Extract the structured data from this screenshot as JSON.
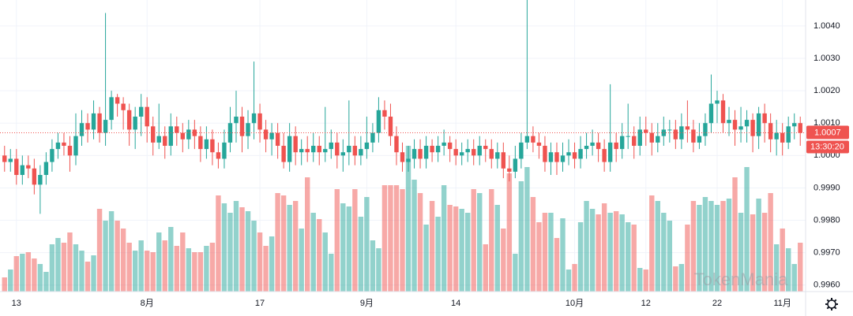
{
  "chart_data": {
    "type": "candlestick",
    "up_color": "#26a69a",
    "down_color": "#ef5350",
    "grid": true,
    "ylim": [
      0.9958,
      1.0048
    ],
    "yticks": [
      {
        "value": 0.996,
        "label": "0.9960"
      },
      {
        "value": 0.997,
        "label": "0.9970"
      },
      {
        "value": 0.998,
        "label": "0.9980"
      },
      {
        "value": 0.999,
        "label": "0.9990"
      },
      {
        "value": 1.0,
        "label": "1.0000"
      },
      {
        "value": 1.001,
        "label": "1.0010"
      },
      {
        "value": 1.002,
        "label": "1.0020"
      },
      {
        "value": 1.003,
        "label": "1.0030"
      },
      {
        "value": 1.004,
        "label": "1.0040"
      }
    ],
    "xticks": [
      {
        "value": 2,
        "label": "13"
      },
      {
        "value": 24,
        "label": "8月"
      },
      {
        "value": 43,
        "label": "17"
      },
      {
        "value": 61,
        "label": "9月"
      },
      {
        "value": 76,
        "label": "14"
      },
      {
        "value": 96,
        "label": "10月"
      },
      {
        "value": 108,
        "label": "12"
      },
      {
        "value": 120,
        "label": "22"
      },
      {
        "value": 131,
        "label": "11月"
      }
    ],
    "last_price": 1.0007,
    "time_label": "13:30:20",
    "watermark": "TokenMania",
    "open": [
      1.0,
      0.9998,
      0.9999,
      0.9994,
      0.9997,
      0.9996,
      0.9991,
      0.9994,
      0.9998,
      1.0002,
      1.0004,
      1.0003,
      1.0,
      1.0006,
      1.001,
      1.0008,
      1.0013,
      1.0007,
      1.0011,
      1.0018,
      1.0016,
      1.0014,
      1.0008,
      1.0012,
      1.0015,
      1.0009,
      1.0004,
      1.0006,
      1.0003,
      1.0009,
      1.0007,
      1.0005,
      1.0008,
      1.0006,
      1.0002,
      1.0005,
      1.0001,
      0.9999,
      1.0004,
      1.001,
      1.0012,
      1.0006,
      1.001,
      1.0013,
      1.0008,
      1.0005,
      1.0007,
      1.0003,
      0.9998,
      1.0006,
      1.0001,
      1.0002,
      1.0001,
      1.0003,
      1.0001,
      1.0002,
      1.0004,
      1.0,
      1.0001,
      1.0003,
      1.0,
      1.0002,
      1.0004,
      1.0007,
      1.0014,
      1.0012,
      1.0006,
      1.0001,
      0.9998,
      0.9999,
      1.0002,
      0.9999,
      1.0003,
      1.0001,
      1.0003,
      1.0004,
      1.0002,
      1.0,
      1.0001,
      1.0002,
      1.0,
      1.0003,
      1.0002,
      0.9999,
      1.0001,
      0.9996,
      0.9995,
      0.9999,
      1.0004,
      1.0006,
      1.0004,
      1.0003,
      0.9998,
      1.0001,
      0.9998,
      1.0,
      1.0001,
      0.9999,
      1.0002,
      1.0003,
      1.0004,
      1.0002,
      0.9998,
      1.0004,
      1.0002,
      1.0006,
      1.0006,
      1.0003,
      1.0008,
      1.0007,
      1.0004,
      1.0006,
      1.0008,
      1.0008,
      1.0005,
      1.0009,
      1.0008,
      1.0004,
      1.0006,
      1.001,
      1.0016,
      1.0017,
      1.001,
      1.0011,
      1.0008,
      1.0009,
      1.0011,
      1.0006,
      1.0013,
      1.001,
      1.0005,
      1.0007,
      1.0004,
      1.0009,
      1.001
    ],
    "high": [
      1.0003,
      1.0002,
      1.0002,
      1.0,
      1.0,
      0.9999,
      0.9997,
      1.0001,
      1.0005,
      1.0007,
      1.0007,
      1.0006,
      1.0013,
      1.0014,
      1.0013,
      1.0017,
      1.0015,
      1.0044,
      1.002,
      1.0019,
      1.0018,
      1.0016,
      1.0015,
      1.0019,
      1.0018,
      1.0012,
      1.0016,
      1.0009,
      1.0013,
      1.0012,
      1.001,
      1.0011,
      1.0011,
      1.0009,
      1.0009,
      1.0008,
      1.0004,
      1.0008,
      1.0015,
      1.002,
      1.0015,
      1.0014,
      1.0029,
      1.0016,
      1.0011,
      1.001,
      1.001,
      1.0007,
      1.001,
      1.0009,
      1.0005,
      1.0006,
      1.0007,
      1.0006,
      1.0015,
      1.0008,
      1.0007,
      1.0005,
      1.0017,
      1.0006,
      1.0006,
      1.0012,
      1.001,
      1.0018,
      1.0017,
      1.0016,
      1.0009,
      1.0004,
      1.0003,
      1.0005,
      1.0005,
      1.0006,
      1.0005,
      1.0006,
      1.0008,
      1.0006,
      1.0005,
      1.0004,
      1.0005,
      1.0005,
      1.0006,
      1.0005,
      1.0005,
      1.0004,
      1.0004,
      1.0,
      1.0003,
      1.0007,
      1.0048,
      1.0009,
      1.0007,
      1.0006,
      1.0004,
      1.0004,
      1.0004,
      1.0005,
      1.0004,
      1.0006,
      1.0007,
      1.0008,
      1.0007,
      1.0005,
      1.0022,
      1.0007,
      1.001,
      1.0016,
      1.0009,
      1.0012,
      1.0012,
      1.001,
      1.001,
      1.0012,
      1.0011,
      1.0011,
      1.0013,
      1.0017,
      1.0011,
      1.001,
      1.0013,
      1.0025,
      1.002,
      1.0019,
      1.0015,
      1.0014,
      1.0015,
      1.0014,
      1.0013,
      1.0015,
      1.0016,
      1.0013,
      1.0011,
      1.001,
      1.0012,
      1.0013,
      1.0012
    ],
    "low": [
      0.9995,
      0.9995,
      0.9991,
      0.9991,
      0.9993,
      0.9988,
      0.9982,
      0.9991,
      0.9995,
      0.9999,
      1.0,
      0.9995,
      0.9997,
      1.0003,
      1.0004,
      1.0005,
      1.0004,
      1.0003,
      1.0008,
      1.0012,
      1.0008,
      1.0003,
      1.0002,
      1.0006,
      1.0004,
      1.0,
      1.0002,
      0.9999,
      1.0,
      1.0003,
      1.0001,
      1.0002,
      1.0002,
      0.9998,
      0.9999,
      0.9997,
      0.9996,
      0.9996,
      1.0001,
      1.0004,
      1.0001,
      1.0002,
      1.0005,
      1.0004,
      1.0001,
      1.0,
      0.9999,
      0.9996,
      0.9995,
      0.9997,
      0.9997,
      0.9998,
      0.9998,
      0.9997,
      0.9998,
      0.9999,
      0.9996,
      0.9995,
      0.9997,
      0.9997,
      0.9997,
      0.9999,
      1.0001,
      1.0004,
      1.0008,
      1.0003,
      0.9997,
      0.9995,
      0.9995,
      0.9996,
      0.9996,
      0.9996,
      0.9998,
      0.9998,
      1.0,
      0.9998,
      0.9997,
      0.9997,
      0.9998,
      0.9997,
      0.9997,
      0.9998,
      0.9996,
      0.9996,
      0.9993,
      0.9992,
      0.9993,
      0.9996,
      1.0002,
      1.0001,
      0.9999,
      0.9995,
      0.9994,
      0.9994,
      0.9995,
      0.9997,
      0.9996,
      0.9996,
      0.9999,
      1.0,
      0.9998,
      0.9995,
      0.9995,
      0.9998,
      0.9999,
      1.0002,
      0.9999,
      1.0,
      1.0003,
      1.0,
      1.0001,
      1.0003,
      1.0004,
      1.0002,
      1.0002,
      1.0004,
      1.0001,
      1.0002,
      1.0003,
      1.0007,
      1.001,
      1.0007,
      1.0006,
      1.0003,
      1.0004,
      1.0004,
      1.0001,
      1.0002,
      1.0004,
      1.0001,
      1.0,
      1.0,
      1.0002,
      1.0005,
      1.0003
    ],
    "close": [
      0.9998,
      0.9999,
      0.9994,
      0.9997,
      0.9996,
      0.9991,
      0.9994,
      0.9998,
      1.0002,
      1.0004,
      1.0003,
      1.0,
      1.0006,
      1.001,
      1.0008,
      1.0013,
      1.0007,
      1.0011,
      1.0018,
      1.0016,
      1.0014,
      1.0008,
      1.0012,
      1.0015,
      1.0009,
      1.0004,
      1.0006,
      1.0003,
      1.0009,
      1.0007,
      1.0005,
      1.0008,
      1.0006,
      1.0002,
      1.0005,
      1.0001,
      0.9999,
      1.0004,
      1.001,
      1.0012,
      1.0006,
      1.001,
      1.0013,
      1.0008,
      1.0005,
      1.0007,
      1.0003,
      0.9998,
      1.0006,
      1.0001,
      1.0002,
      1.0001,
      1.0003,
      1.0001,
      1.0002,
      1.0004,
      1.0,
      1.0001,
      1.0003,
      1.0,
      1.0002,
      1.0004,
      1.0007,
      1.0014,
      1.0012,
      1.0006,
      1.0001,
      0.9998,
      0.9999,
      1.0002,
      0.9999,
      1.0003,
      1.0001,
      1.0003,
      1.0004,
      1.0002,
      1.0,
      1.0001,
      1.0002,
      1.0,
      1.0003,
      1.0002,
      0.9999,
      1.0001,
      0.9996,
      0.9995,
      0.9999,
      1.0004,
      1.0006,
      1.0004,
      1.0003,
      0.9998,
      1.0001,
      0.9998,
      1.0,
      1.0001,
      0.9999,
      1.0002,
      1.0003,
      1.0004,
      1.0002,
      0.9998,
      1.0004,
      1.0002,
      1.0006,
      1.0006,
      1.0003,
      1.0008,
      1.0007,
      1.0004,
      1.0006,
      1.0008,
      1.0008,
      1.0005,
      1.0009,
      1.0008,
      1.0004,
      1.0006,
      1.001,
      1.0016,
      1.0017,
      1.001,
      1.0011,
      1.0008,
      1.0009,
      1.0011,
      1.0006,
      1.0013,
      1.001,
      1.0005,
      1.0007,
      1.0004,
      1.0009,
      1.001,
      1.0007
    ],
    "volume": [
      18,
      28,
      45,
      48,
      50,
      42,
      35,
      25,
      60,
      68,
      62,
      75,
      60,
      52,
      38,
      46,
      105,
      90,
      102,
      90,
      80,
      62,
      52,
      65,
      52,
      50,
      75,
      65,
      82,
      58,
      75,
      55,
      50,
      50,
      58,
      62,
      122,
      112,
      100,
      115,
      107,
      102,
      90,
      75,
      58,
      70,
      125,
      122,
      110,
      115,
      80,
      145,
      100,
      92,
      75,
      48,
      130,
      112,
      108,
      130,
      95,
      120,
      65,
      55,
      135,
      135,
      135,
      130,
      185,
      142,
      125,
      85,
      115,
      95,
      135,
      110,
      108,
      105,
      100,
      130,
      125,
      60,
      130,
      110,
      80,
      150,
      48,
      140,
      158,
      120,
      88,
      100,
      100,
      68,
      93,
      28,
      35,
      88,
      115,
      105,
      98,
      112,
      100,
      102,
      98,
      88,
      85,
      30,
      28,
      122,
      115,
      100,
      90,
      32,
      35,
      85,
      115,
      110,
      120,
      115,
      110,
      115,
      118,
      145,
      100,
      158,
      98,
      118,
      100,
      125,
      60,
      80,
      55,
      35,
      62
    ]
  }
}
